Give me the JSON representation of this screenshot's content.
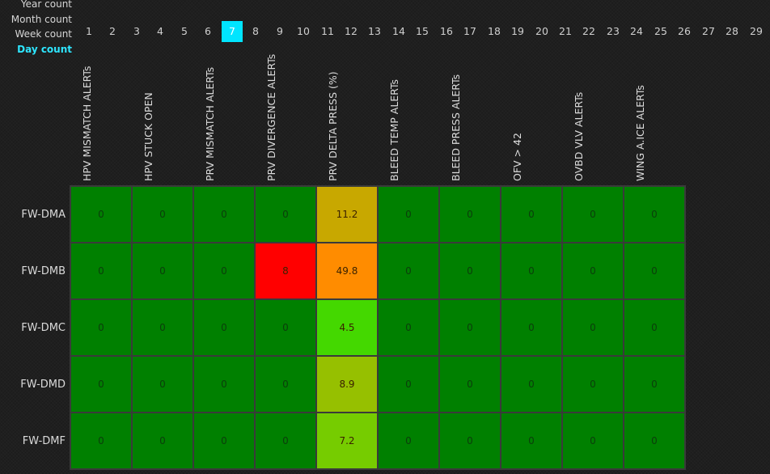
{
  "count_labels": {
    "year": "Year count",
    "month": "Month count",
    "week": "Week count",
    "day": "Day count",
    "active": "day"
  },
  "week_numbers": [
    "1",
    "2",
    "3",
    "4",
    "5",
    "6",
    "7",
    "8",
    "9",
    "10",
    "11",
    "12",
    "13",
    "14",
    "15",
    "16",
    "17",
    "18",
    "19",
    "20",
    "21",
    "22",
    "23",
    "24",
    "25",
    "26",
    "27",
    "28",
    "29"
  ],
  "selected_week": "7",
  "columns": [
    "HPV MISMATCH ALERTs",
    "HPV STUCK OPEN",
    "PRV MISMATCH ALERTs",
    "PRV DIVERGENCE ALERTs",
    "PRV DELTA PRESS (%)",
    "BLEED TEMP ALERTs",
    "BLEED PRESS ALERTs",
    "OFV > 42",
    "OVBD VLV ALERTs",
    "WING A.ICE ALERTs"
  ],
  "rows": [
    "FW-DMA",
    "FW-DMB",
    "FW-DMC",
    "FW-DMD",
    "FW-DMF"
  ],
  "chart_data": {
    "type": "heatmap",
    "x": [
      "HPV MISMATCH ALERTs",
      "HPV STUCK OPEN",
      "PRV MISMATCH ALERTs",
      "PRV DIVERGENCE ALERTs",
      "PRV DELTA PRESS (%)",
      "BLEED TEMP ALERTs",
      "BLEED PRESS ALERTs",
      "OFV > 42",
      "OVBD VLV ALERTs",
      "WING A.ICE ALERTs"
    ],
    "y": [
      "FW-DMA",
      "FW-DMB",
      "FW-DMC",
      "FW-DMD",
      "FW-DMF"
    ],
    "values": [
      [
        "0",
        "0",
        "0",
        "0",
        "11.2",
        "0",
        "0",
        "0",
        "0",
        "0"
      ],
      [
        "0",
        "0",
        "0",
        "8",
        "49.8",
        "0",
        "0",
        "0",
        "0",
        "0"
      ],
      [
        "0",
        "0",
        "0",
        "0",
        "4.5",
        "0",
        "0",
        "0",
        "0",
        "0"
      ],
      [
        "0",
        "0",
        "0",
        "0",
        "8.9",
        "0",
        "0",
        "0",
        "0",
        "0"
      ],
      [
        "0",
        "0",
        "0",
        "0",
        "7.2",
        "0",
        "0",
        "0",
        "0",
        "0"
      ]
    ],
    "colors": [
      [
        "#008000",
        "#008000",
        "#008000",
        "#008000",
        "#c8a800",
        "#008000",
        "#008000",
        "#008000",
        "#008000",
        "#008000"
      ],
      [
        "#008000",
        "#008000",
        "#008000",
        "#ff0000",
        "#ff8c00",
        "#008000",
        "#008000",
        "#008000",
        "#008000",
        "#008000"
      ],
      [
        "#008000",
        "#008000",
        "#008000",
        "#008000",
        "#44d800",
        "#008000",
        "#008000",
        "#008000",
        "#008000",
        "#008000"
      ],
      [
        "#008000",
        "#008000",
        "#008000",
        "#008000",
        "#96c000",
        "#008000",
        "#008000",
        "#008000",
        "#008000",
        "#008000"
      ],
      [
        "#008000",
        "#008000",
        "#008000",
        "#008000",
        "#76cc00",
        "#008000",
        "#008000",
        "#008000",
        "#008000",
        "#008000"
      ]
    ]
  }
}
